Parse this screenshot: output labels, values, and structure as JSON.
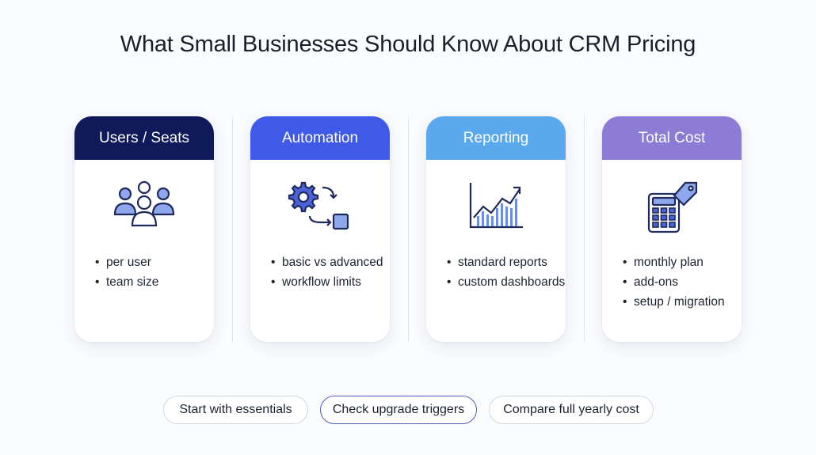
{
  "title": "What Small Businesses Should Know About CRM Pricing",
  "colors": {
    "users_header": "#0e1a5a",
    "automation_header": "#3e5ae6",
    "reporting_header": "#5aa9ee",
    "total_header": "#8c7cd6",
    "icon_stroke": "#1f2a5c",
    "icon_fill": "#8fa7ec"
  },
  "cards": [
    {
      "header": "Users / Seats",
      "icon": "users-group-icon",
      "items": [
        "per user",
        "team size"
      ]
    },
    {
      "header": "Automation",
      "icon": "gear-workflow-icon",
      "items": [
        "basic vs advanced",
        "workflow limits"
      ]
    },
    {
      "header": "Reporting",
      "icon": "bar-chart-trend-icon",
      "items": [
        "standard reports",
        "custom dashboards"
      ]
    },
    {
      "header": "Total Cost",
      "icon": "calculator-price-tag-icon",
      "items": [
        "monthly plan",
        "add-ons",
        "setup / migration"
      ]
    }
  ],
  "buttons": [
    {
      "label": "Start with essentials",
      "active": false
    },
    {
      "label": "Check upgrade triggers",
      "active": true
    },
    {
      "label": "Compare full yearly cost",
      "active": false
    }
  ]
}
